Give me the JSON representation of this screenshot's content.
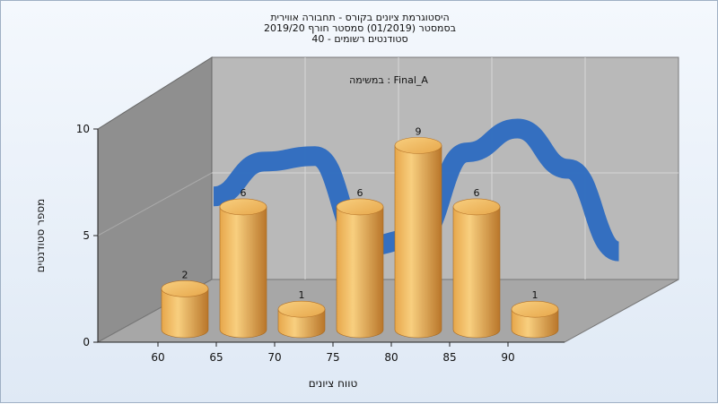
{
  "chart_data": {
    "type": "bar",
    "title_lines": [
      "היסטוגרמת ציונים בקורס - תחבורה אווירית",
      "בסמסטר  (01/2019)  סמסטר חורף 2019/20",
      "סטודנטים רשומים - 40"
    ],
    "annotation": "במשימה : Final_A",
    "categories": [
      "60",
      "65",
      "70",
      "75",
      "80",
      "85",
      "90"
    ],
    "values": [
      2,
      6,
      1,
      6,
      9,
      6,
      1
    ],
    "curve": [
      5.9,
      7.8,
      8.1,
      3.2,
      3.6,
      8.3,
      9.6,
      7.4,
      2.9
    ],
    "xlabel": "טווח ציונים",
    "ylabel": "מספר סטודנטים",
    "yticks": [
      "0",
      "5",
      "10"
    ],
    "ylim": [
      0,
      10
    ],
    "grid": true,
    "colors": {
      "bar_light": "#f8cf7f",
      "bar_mid": "#e7a74b",
      "bar_dark": "#b9762a",
      "curve": "#2f6cc0",
      "back_wall": "#b9b9b9",
      "side_wall": "#8f8f8f",
      "floor": "#a7a7a7",
      "grid": "#d6d6d6"
    }
  }
}
